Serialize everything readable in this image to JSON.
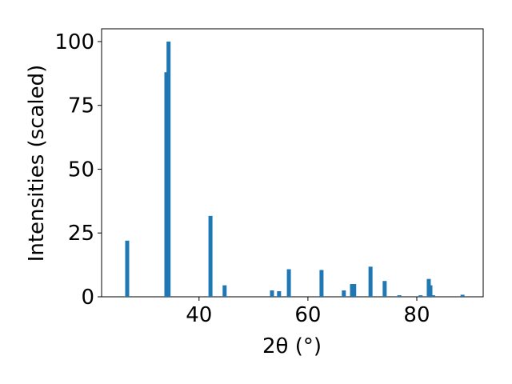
{
  "chart_data": {
    "type": "bar",
    "xlabel": "2θ (°)",
    "ylabel": "Intensities (scaled)",
    "x": [
      26.8,
      34.0,
      34.4,
      42.1,
      44.7,
      53.4,
      54.7,
      56.5,
      62.5,
      66.6,
      68.1,
      68.5,
      71.5,
      74.1,
      76.8,
      80.7,
      82.2,
      82.5,
      83.0,
      88.4
    ],
    "values": [
      22,
      88,
      100,
      31.7,
      4.5,
      2.5,
      2.2,
      10.8,
      10.5,
      2.5,
      5,
      5,
      11.8,
      6.2,
      0.6,
      0.6,
      7,
      4.5,
      0.6,
      0.8
    ],
    "color": "#1f77b4",
    "xlim": [
      22.1,
      92.2
    ],
    "xticks": [
      40,
      60,
      80
    ],
    "ylim": [
      0,
      105
    ],
    "yticks": [
      0,
      25,
      50,
      75,
      100
    ]
  }
}
